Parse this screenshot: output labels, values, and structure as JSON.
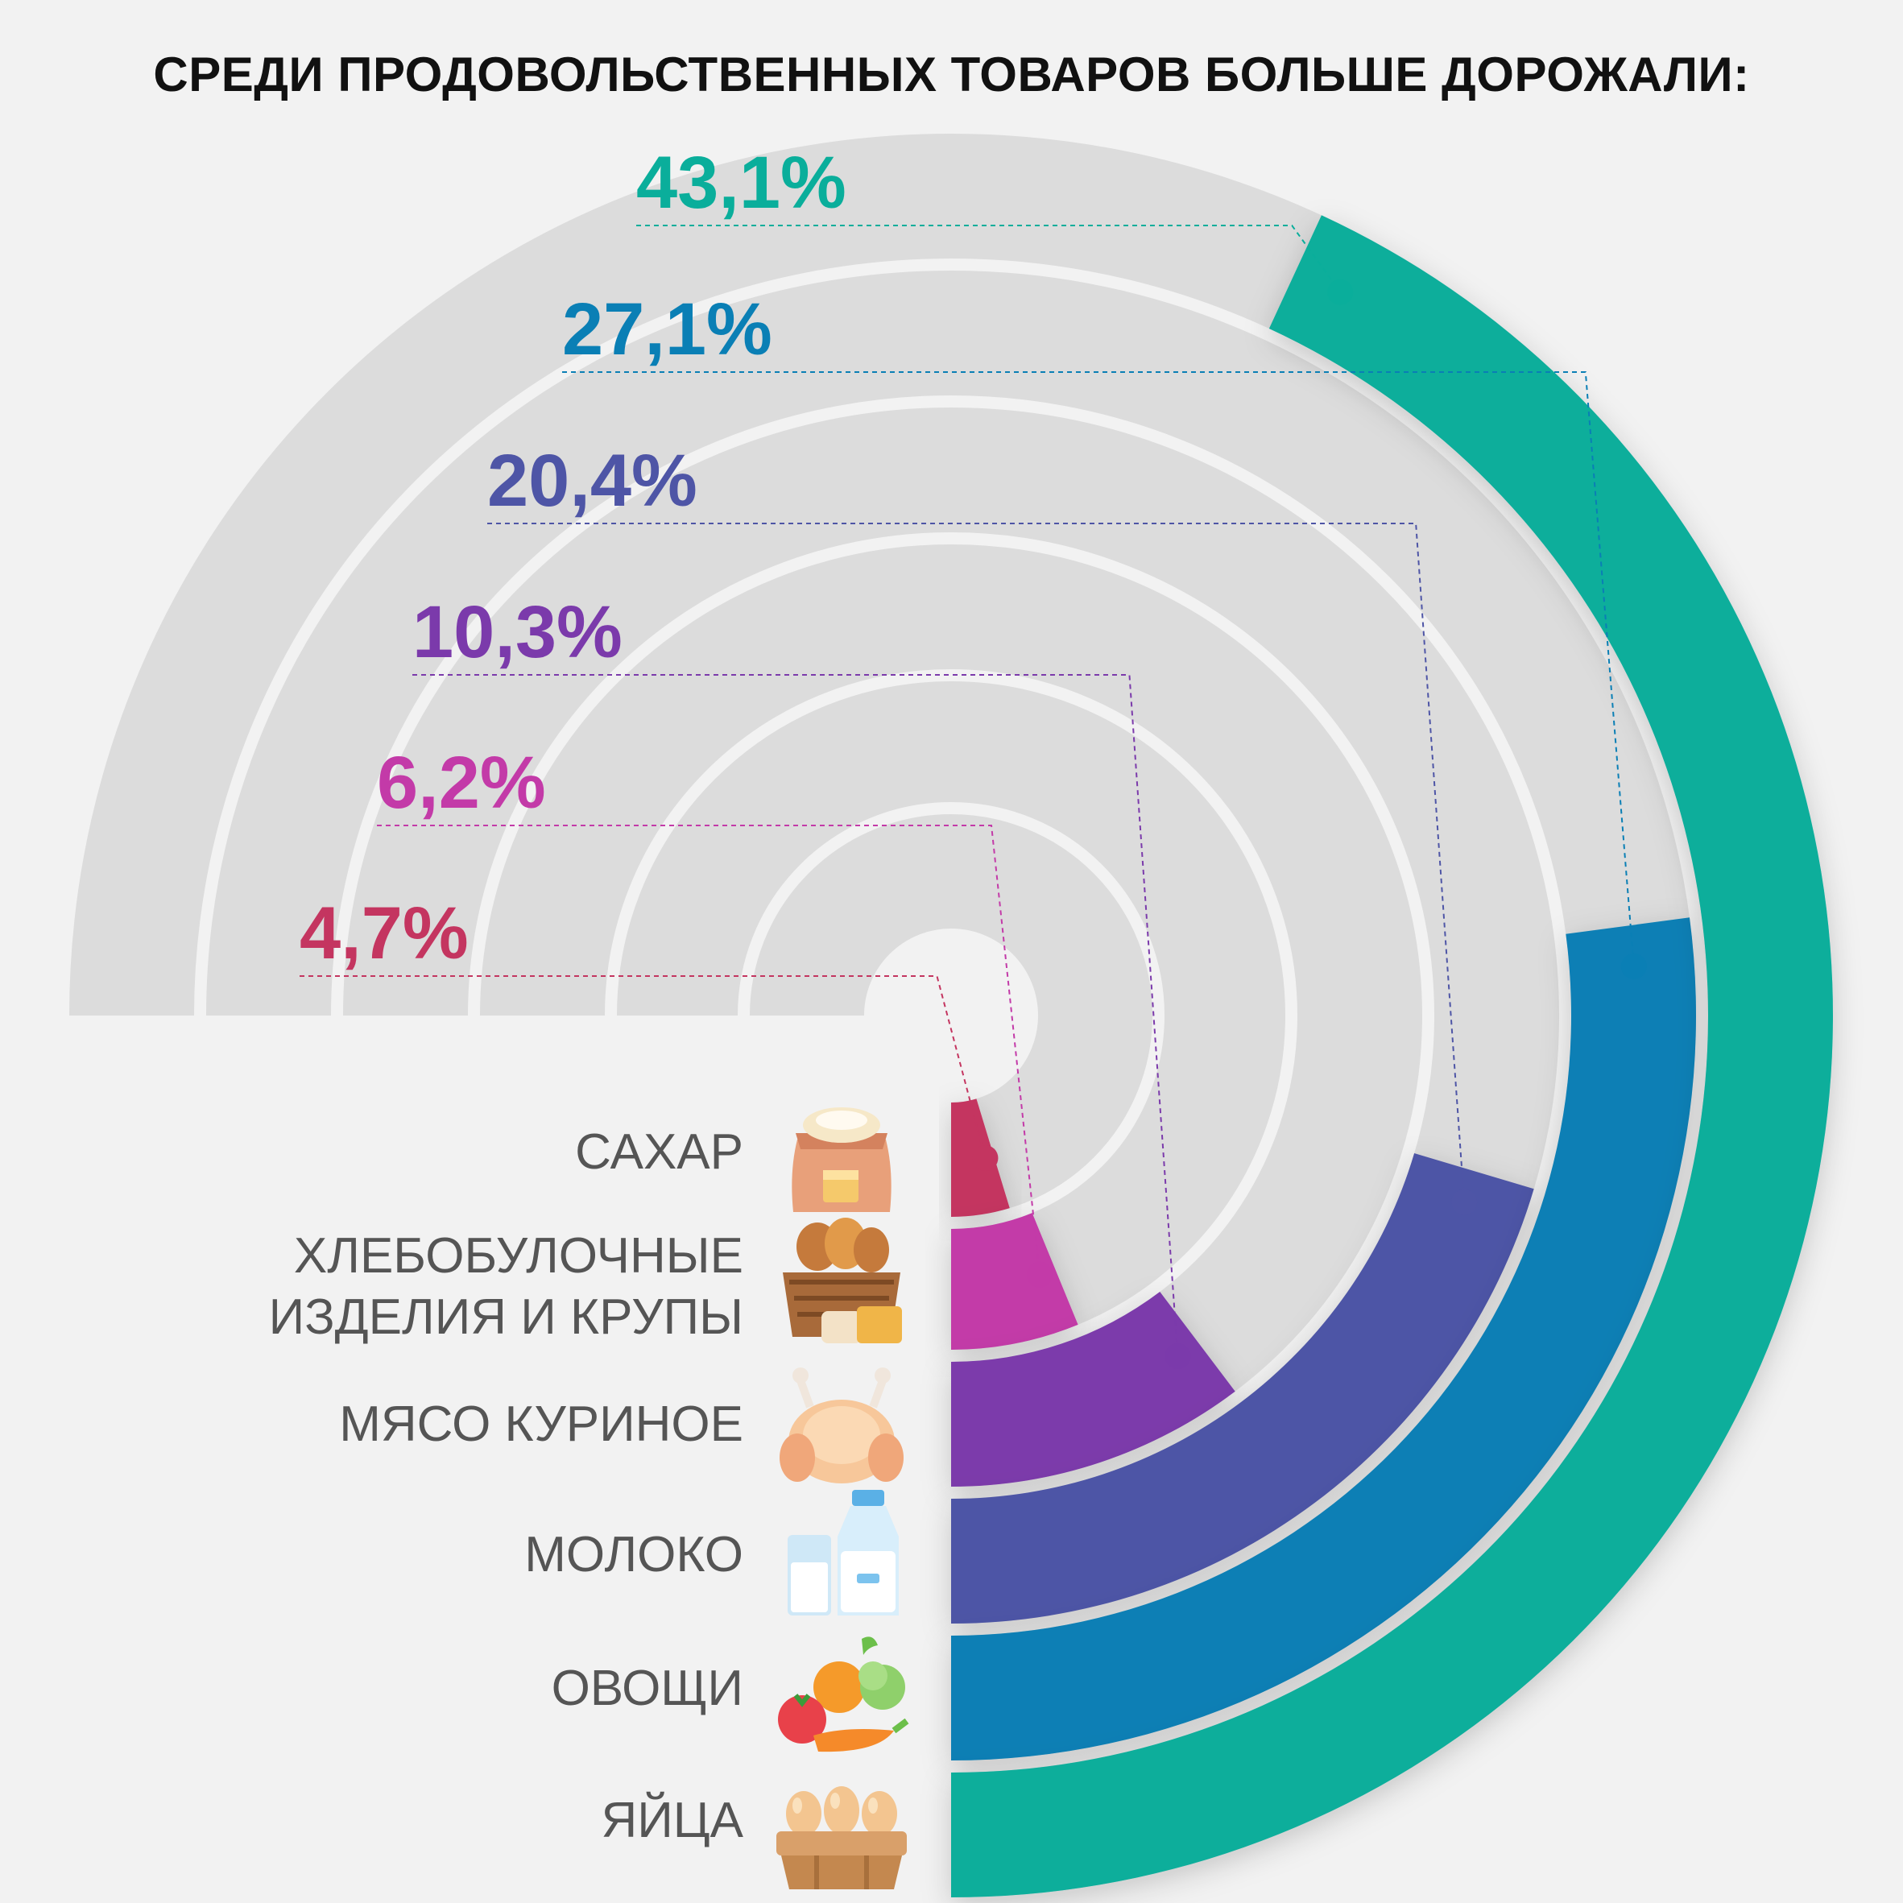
{
  "title": "СРЕДИ ПРОДОВОЛЬСТВЕННЫХ ТОВАРОВ БОЛЬШЕ ДОРОЖАЛИ:",
  "chart_data": {
    "type": "radial-bar",
    "title": "СРЕДИ ПРОДОВОЛЬСТВЕННЫХ ТОВАРОВ БОЛЬШЕ ДОРОЖАЛИ:",
    "unit": "%",
    "max_value": 50,
    "categories": [
      "САХАР",
      "ХЛЕБОБУЛОЧНЫЕ ИЗДЕЛИЯ И КРУПЫ",
      "МЯСО КУРИНОЕ",
      "МОЛОКО",
      "ОВОЩИ",
      "ЯЙЦА"
    ],
    "values": [
      4.7,
      6.2,
      10.3,
      20.4,
      27.1,
      43.1
    ],
    "value_labels": [
      "4,7%",
      "6,2%",
      "10,3%",
      "20,4%",
      "27,1%",
      "43,1%"
    ],
    "colors": [
      "#c43560",
      "#c33aa8",
      "#7b3aab",
      "#4e55a6",
      "#0a7fb5",
      "#0aae9b"
    ]
  },
  "labels": {
    "sugar": "САХАР",
    "bread": "ХЛЕБОБУЛОЧНЫЕ\nИЗДЕЛИЯ И КРУПЫ",
    "chicken": "МЯСО КУРИНОЕ",
    "milk": "МОЛОКО",
    "vegetables": "ОВОЩИ",
    "eggs": "ЯЙЦА"
  },
  "icons": [
    "sugar-sack-icon",
    "bread-basket-icon",
    "chicken-icon",
    "milk-icon",
    "vegetables-icon",
    "eggs-carton-icon"
  ],
  "colors": {
    "background": "#f2f2f2",
    "track": "#dcdcdc",
    "separator": "#f2f2f2",
    "text": "#555555"
  }
}
